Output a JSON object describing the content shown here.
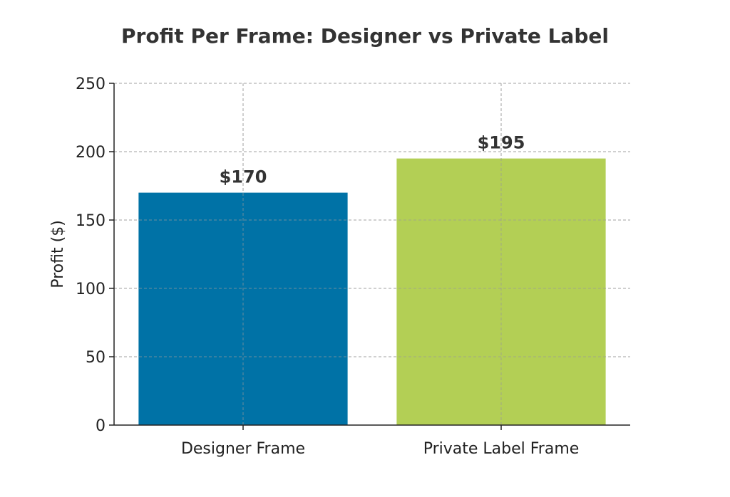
{
  "chart_data": {
    "type": "bar",
    "title": "Profit Per Frame: Designer vs Private Label",
    "xlabel": "",
    "ylabel": "Profit ($)",
    "categories": [
      "Designer Frame",
      "Private Label Frame"
    ],
    "values": [
      170,
      195
    ],
    "data_labels": [
      "$170",
      "$195"
    ],
    "colors": [
      "#0072A6",
      "#B3CF55"
    ],
    "ylim": [
      0,
      250
    ],
    "yticks": [
      0,
      50,
      100,
      150,
      200,
      250
    ],
    "grid": true
  }
}
